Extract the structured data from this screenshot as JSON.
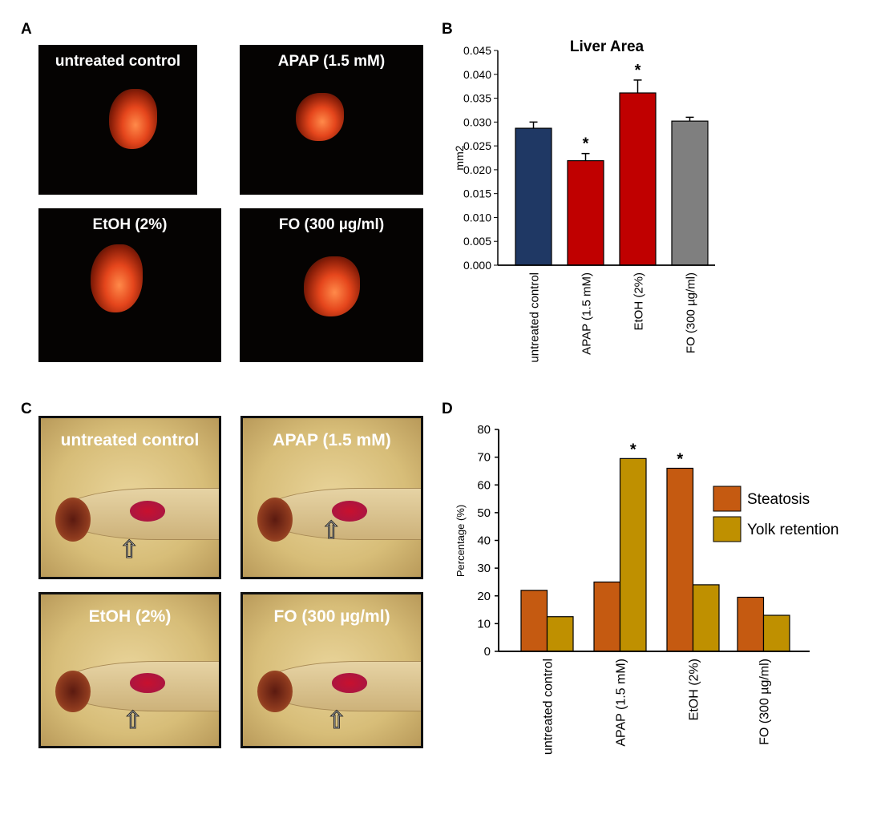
{
  "panels": {
    "A": {
      "label": "A",
      "images": [
        "untreated control",
        "APAP (1.5 mM)",
        "EtOH (2%)",
        "FO (300 µg/ml)"
      ]
    },
    "B": {
      "label": "B"
    },
    "C": {
      "label": "C",
      "images": [
        "untreated control",
        "APAP (1.5 mM)",
        "EtOH (2%)",
        "FO (300 µg/ml)"
      ]
    },
    "D": {
      "label": "D"
    }
  },
  "chart_data": [
    {
      "type": "bar",
      "title": "Liver Area",
      "ylabel": "mm2",
      "xlabel": "",
      "ylim": [
        0,
        0.045
      ],
      "yticks": [
        "0.000",
        "0.005",
        "0.010",
        "0.015",
        "0.020",
        "0.025",
        "0.030",
        "0.035",
        "0.040",
        "0.045"
      ],
      "categories": [
        "untreated control",
        "APAP (1.5 mM)",
        "EtOH (2%)",
        "FO (300 µg/ml)"
      ],
      "values": [
        0.0287,
        0.0219,
        0.0361,
        0.0302
      ],
      "errors": [
        0.0013,
        0.0015,
        0.0027,
        0.0008
      ],
      "significance": [
        "",
        "*",
        "*",
        ""
      ],
      "colors": [
        "#1f3864",
        "#c00000",
        "#c00000",
        "#7f7f7f"
      ]
    },
    {
      "type": "bar",
      "title": "",
      "ylabel": "Percentage (%)",
      "xlabel": "",
      "ylim": [
        0,
        80
      ],
      "yticks": [
        "0",
        "10",
        "20",
        "30",
        "40",
        "50",
        "60",
        "70",
        "80"
      ],
      "categories": [
        "untreated control",
        "APAP (1.5 mM)",
        "EtOH (2%)",
        "FO (300 µg/ml)"
      ],
      "series": [
        {
          "name": "Steatosis",
          "values": [
            22,
            25,
            66,
            19.5
          ],
          "color": "#c55a11"
        },
        {
          "name": "Yolk retention",
          "values": [
            12.5,
            69.5,
            24,
            13
          ],
          "color": "#bf9000"
        }
      ],
      "significance": [
        "",
        "*",
        "*",
        ""
      ],
      "legend": "right"
    }
  ]
}
